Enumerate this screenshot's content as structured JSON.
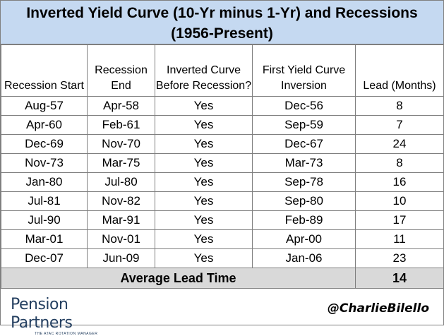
{
  "title_line1": "Inverted Yield Curve (10-Yr minus 1-Yr) and Recessions",
  "title_line2": "(1956-Present)",
  "chart_data": {
    "type": "table",
    "columns": [
      "Recession Start",
      "Recession End",
      "Inverted Curve Before Recession?",
      "First Yield Curve Inversion",
      "Lead (Months)"
    ],
    "rows": [
      [
        "Aug-57",
        "Apr-58",
        "Yes",
        "Dec-56",
        "8"
      ],
      [
        "Apr-60",
        "Feb-61",
        "Yes",
        "Sep-59",
        "7"
      ],
      [
        "Dec-69",
        "Nov-70",
        "Yes",
        "Dec-67",
        "24"
      ],
      [
        "Nov-73",
        "Mar-75",
        "Yes",
        "Mar-73",
        "8"
      ],
      [
        "Jan-80",
        "Jul-80",
        "Yes",
        "Sep-78",
        "16"
      ],
      [
        "Jul-81",
        "Nov-82",
        "Yes",
        "Sep-80",
        "10"
      ],
      [
        "Jul-90",
        "Mar-91",
        "Yes",
        "Feb-89",
        "17"
      ],
      [
        "Mar-01",
        "Nov-01",
        "Yes",
        "Apr-00",
        "11"
      ],
      [
        "Dec-07",
        "Jun-09",
        "Yes",
        "Jan-06",
        "23"
      ]
    ],
    "summary": {
      "label": "Average Lead Time",
      "value": "14"
    }
  },
  "colors": {
    "title_bg": "#c5d9f1",
    "summary_bg": "#d9d9d9",
    "border": "#7f7f7f",
    "logo": "#243f60"
  },
  "footer": {
    "logo_text": "Pension Partners",
    "logo_tagline": "THE ATAC ROTATION MANAGER",
    "handle": "@CharlieBilello"
  }
}
